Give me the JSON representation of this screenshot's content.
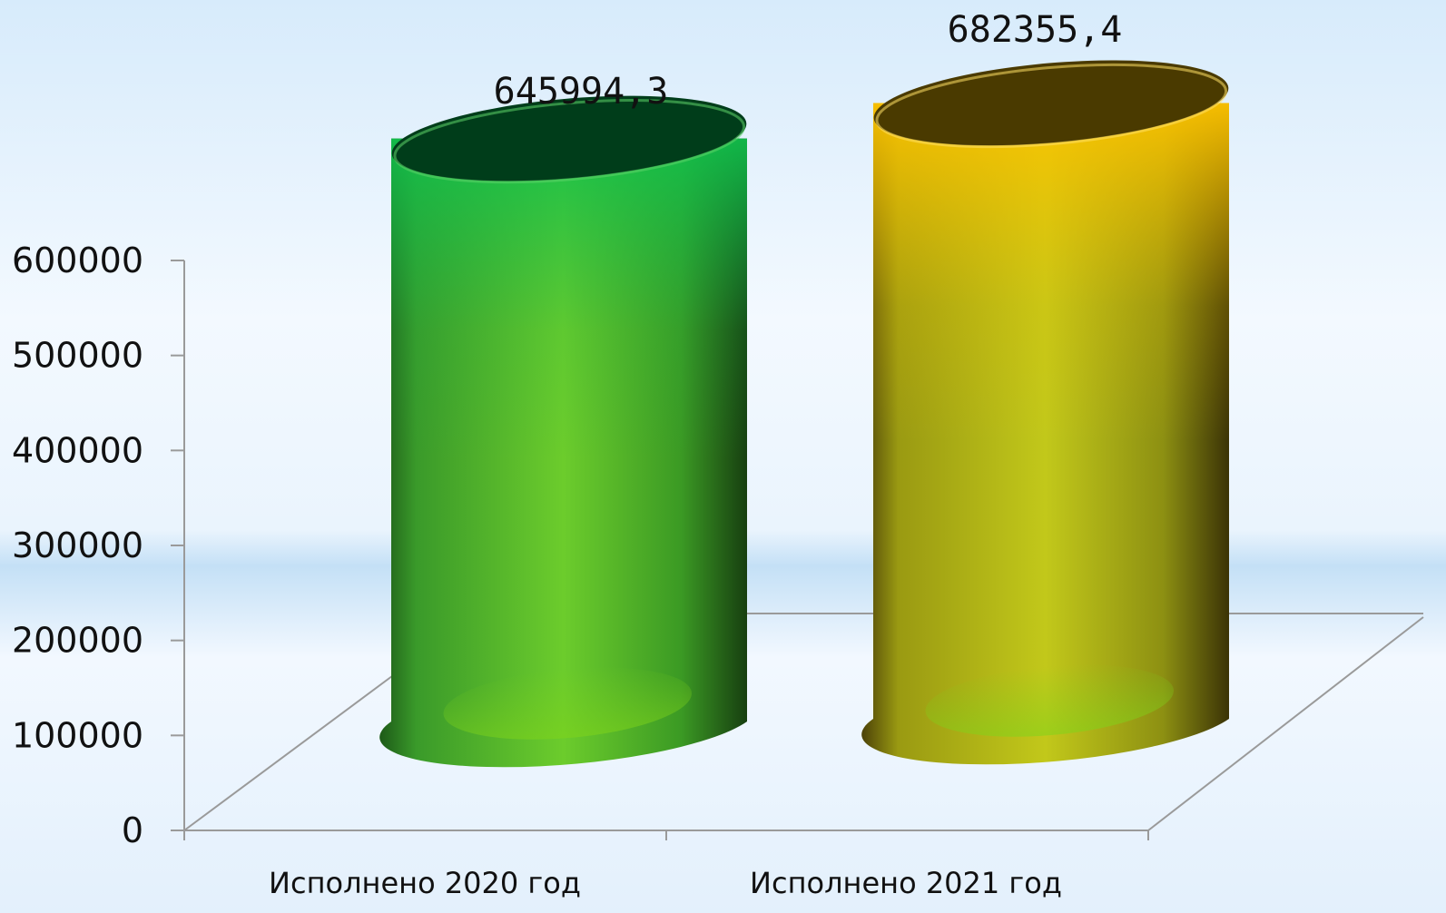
{
  "chart_data": {
    "type": "bar",
    "style": "3d-cylinder",
    "categories": [
      "Исполнено 2020 год",
      "Исполнено 2021 год"
    ],
    "values": [
      645994.3,
      682355.4
    ],
    "data_labels": [
      "645994,3",
      "682355,4"
    ],
    "yticks": [
      0,
      100000,
      200000,
      300000,
      400000,
      500000,
      600000
    ],
    "ytick_labels": [
      "0",
      "100000",
      "200000",
      "300000",
      "400000",
      "500000",
      "600000"
    ],
    "ylim": [
      0,
      600000
    ],
    "title": "",
    "xlabel": "",
    "ylabel": "",
    "grid": false,
    "legend": "none",
    "colors": [
      "#2db84a",
      "#f2c200"
    ]
  }
}
